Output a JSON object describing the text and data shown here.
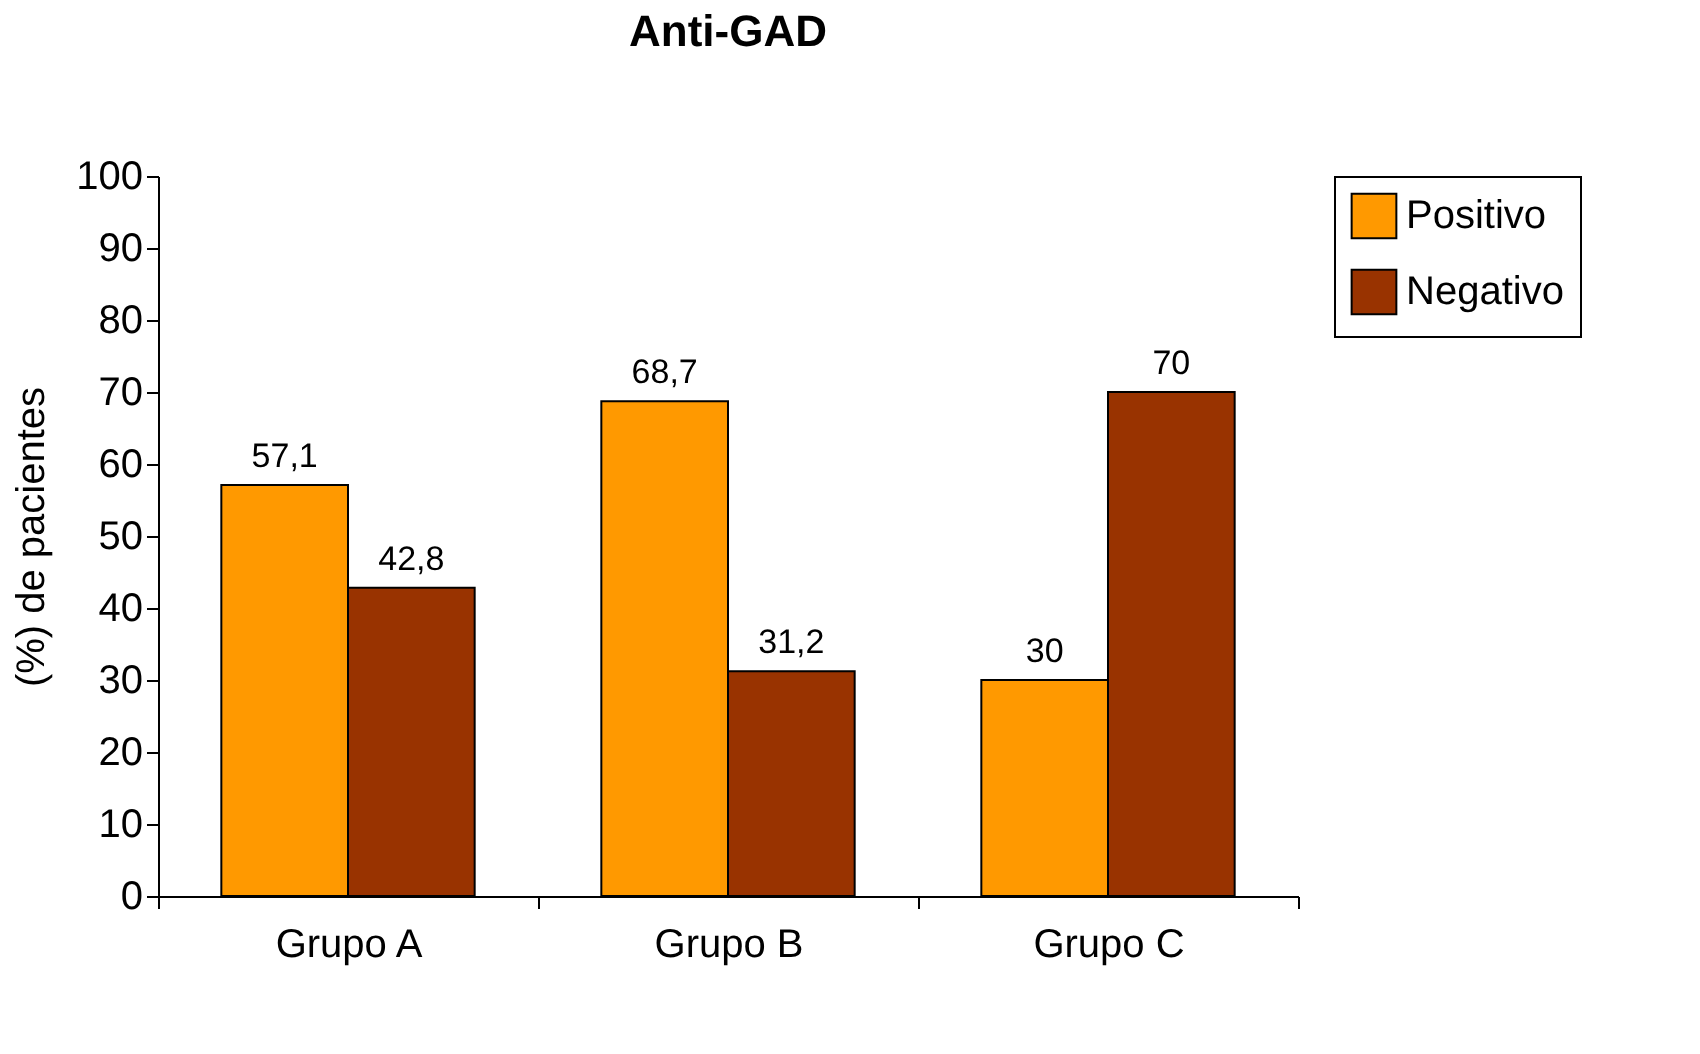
{
  "chart_data": {
    "type": "bar",
    "title": "Anti-GAD",
    "ylabel": "(%) de pacientes",
    "categories": [
      "Grupo A",
      "Grupo B",
      "Grupo C"
    ],
    "series": [
      {
        "name": "Positivo",
        "color": "#ff9900",
        "values": [
          57.1,
          68.7,
          30
        ],
        "value_labels": [
          "57,1",
          "68,7",
          "30"
        ]
      },
      {
        "name": "Negativo",
        "color": "#993300",
        "values": [
          42.8,
          31.2,
          70
        ],
        "value_labels": [
          "42,8",
          "31,2",
          "70"
        ]
      }
    ],
    "ylim": [
      0,
      100
    ],
    "yticks": [
      0,
      10,
      20,
      30,
      40,
      50,
      60,
      70,
      80,
      90,
      100
    ],
    "grid": false,
    "legend": "right"
  }
}
